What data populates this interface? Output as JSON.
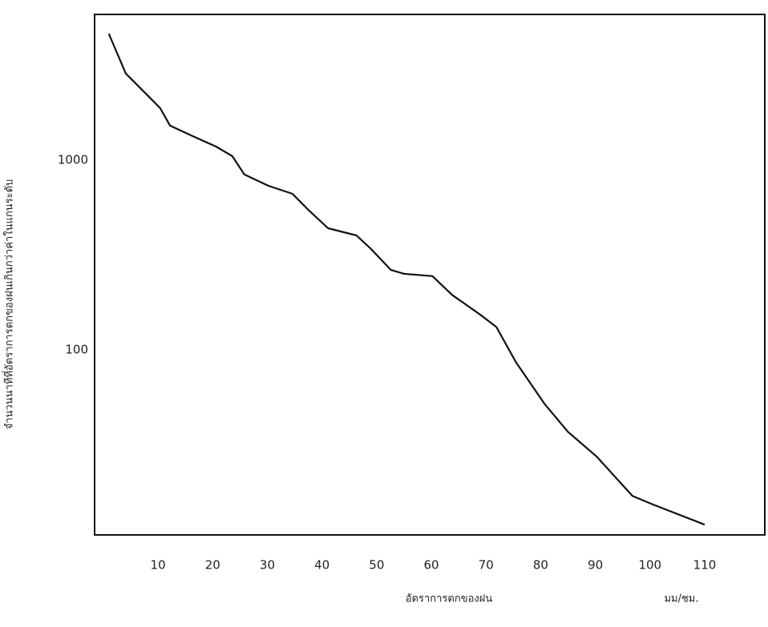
{
  "chart_data": {
    "type": "line",
    "xlabel": "อัตราการตกของฝน",
    "x_unit": "มม/ชม.",
    "ylabel": "จำนวนนาทีที่อัตราการตกของฝนเกินกว่าค่าในแกนระดับ",
    "x": [
      1.0,
      4.1,
      8.2,
      10.4,
      12.2,
      16.3,
      20.6,
      23.6,
      25.8,
      30.2,
      34.6,
      37.5,
      41.1,
      46.3,
      48.8,
      52.6,
      55.0,
      60.2,
      63.8,
      69.0,
      71.9,
      75.5,
      80.7,
      85.0,
      90.2,
      96.8,
      100.4,
      110.0
    ],
    "series": [
      {
        "color": "#111111",
        "values": [
          4640,
          2860,
          2180,
          1880,
          1520,
          1340,
          1180,
          1050,
          840,
          733,
          665,
          547,
          438,
          401,
          344,
          264,
          252,
          245,
          195,
          153,
          132,
          86,
          52,
          37,
          27.5,
          17,
          15.4,
          12
        ]
      }
    ],
    "xlim": [
      -1.6,
      121
    ],
    "xticks": [
      10,
      20,
      30,
      40,
      50,
      60,
      70,
      80,
      90,
      100,
      110
    ],
    "ylim": [
      10.6,
      5860
    ],
    "yticks": [
      100,
      1000
    ],
    "ylog": true,
    "grid": false
  }
}
